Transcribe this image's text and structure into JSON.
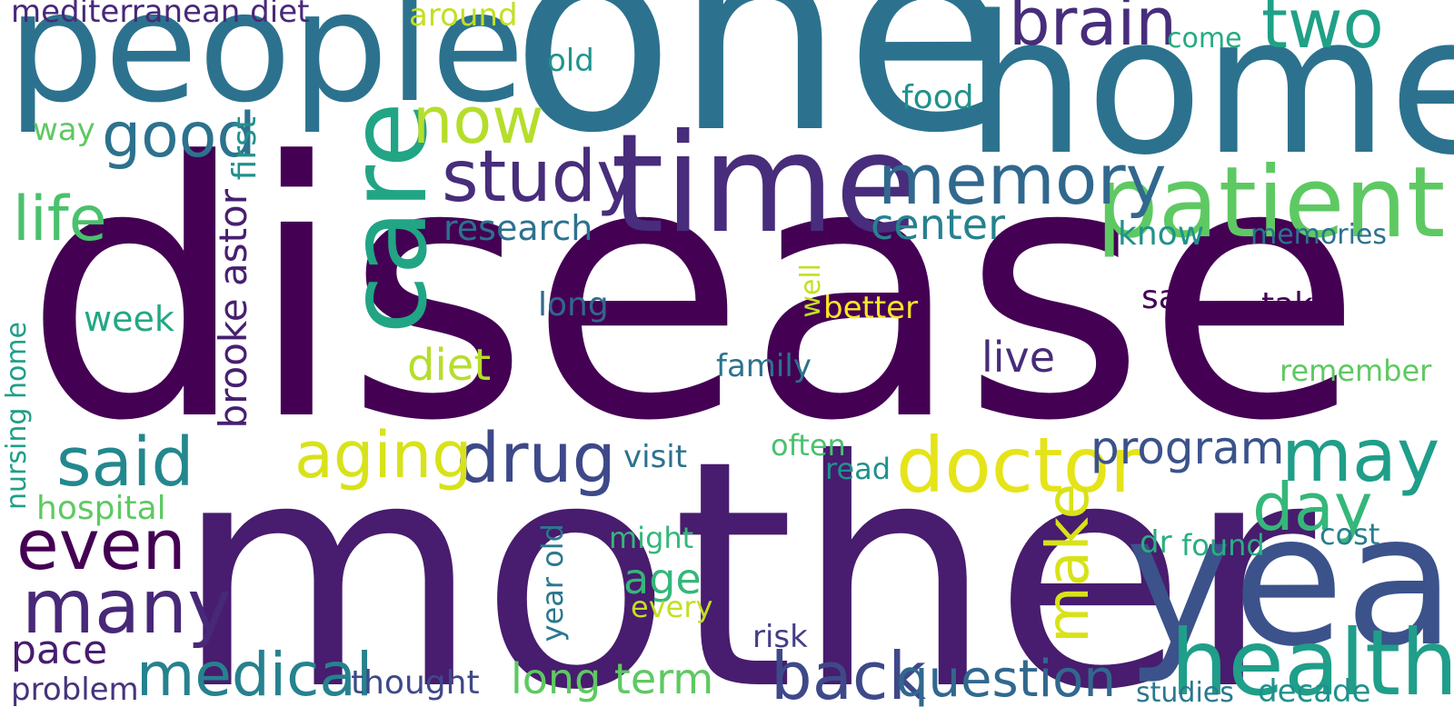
{
  "words": [
    {
      "text": "disease",
      "color": "#440154"
    },
    {
      "text": "mother",
      "color": "#481c6e"
    },
    {
      "text": "one",
      "color": "#2c728e"
    },
    {
      "text": "people",
      "color": "#2c728e"
    },
    {
      "text": "home",
      "color": "#2c728e"
    },
    {
      "text": "year",
      "color": "#3b528b"
    },
    {
      "text": "care",
      "color": "#21a585"
    },
    {
      "text": "time",
      "color": "#472d7b"
    },
    {
      "text": "patient",
      "color": "#5ec962"
    },
    {
      "text": "health",
      "color": "#1f9e89"
    },
    {
      "text": "memory",
      "color": "#31688e"
    },
    {
      "text": "brain",
      "color": "#472d7b"
    },
    {
      "text": "two",
      "color": "#1fa187"
    },
    {
      "text": "good",
      "color": "#2c728e"
    },
    {
      "text": "study",
      "color": "#472d7b"
    },
    {
      "text": "life",
      "color": "#4ac16d"
    },
    {
      "text": "now",
      "color": "#b5de2b"
    },
    {
      "text": "mediterranean diet",
      "color": "#482878"
    },
    {
      "text": "around",
      "color": "#c2df23"
    },
    {
      "text": "doctor",
      "color": "#e5e419"
    },
    {
      "text": "drug",
      "color": "#3e4989"
    },
    {
      "text": "aging",
      "color": "#d8e219"
    },
    {
      "text": "said",
      "color": "#23888e"
    },
    {
      "text": "even",
      "color": "#440154"
    },
    {
      "text": "many",
      "color": "#482878"
    },
    {
      "text": "medical",
      "color": "#26828e"
    },
    {
      "text": "back",
      "color": "#3e4989"
    },
    {
      "text": "question",
      "color": "#31688e"
    },
    {
      "text": "may",
      "color": "#1f9e89"
    },
    {
      "text": "day",
      "color": "#35b779"
    },
    {
      "text": "make",
      "color": "#d8e219"
    },
    {
      "text": "program",
      "color": "#3b528b"
    },
    {
      "text": "diet",
      "color": "#b5de2b"
    },
    {
      "text": "center",
      "color": "#26828e"
    },
    {
      "text": "research",
      "color": "#2c728e"
    },
    {
      "text": "brooke astor",
      "color": "#481f70"
    },
    {
      "text": "first",
      "color": "#21918c"
    },
    {
      "text": "food",
      "color": "#21918c"
    },
    {
      "text": "live",
      "color": "#472c7a"
    },
    {
      "text": "long term",
      "color": "#5ec962"
    },
    {
      "text": "pace",
      "color": "#481c6e"
    },
    {
      "text": "problem",
      "color": "#46337e"
    },
    {
      "text": "thought",
      "color": "#3e4989"
    },
    {
      "text": "age",
      "color": "#35b779"
    },
    {
      "text": "hospital",
      "color": "#5ec962"
    },
    {
      "text": "week",
      "color": "#22a884"
    },
    {
      "text": "nursing home",
      "color": "#1f9e89"
    },
    {
      "text": "decade",
      "color": "#21918c"
    },
    {
      "text": "studies",
      "color": "#2a788e"
    },
    {
      "text": "come",
      "color": "#25ab82"
    },
    {
      "text": "old",
      "color": "#1f948c"
    },
    {
      "text": "way",
      "color": "#5ec962"
    },
    {
      "text": "memories",
      "color": "#2c728e"
    },
    {
      "text": "know",
      "color": "#20928c"
    },
    {
      "text": "take",
      "color": "#440154"
    },
    {
      "text": "say",
      "color": "#440154"
    },
    {
      "text": "remember",
      "color": "#5ec962"
    },
    {
      "text": "cost",
      "color": "#277f8e"
    },
    {
      "text": "found",
      "color": "#29af7f"
    },
    {
      "text": "dr",
      "color": "#29af7f"
    },
    {
      "text": "better",
      "color": "#fde725"
    },
    {
      "text": "family",
      "color": "#2c728e"
    },
    {
      "text": "often",
      "color": "#4ac16d"
    },
    {
      "text": "read",
      "color": "#21918c"
    },
    {
      "text": "visit",
      "color": "#2c728e"
    },
    {
      "text": "might",
      "color": "#35b779"
    },
    {
      "text": "every",
      "color": "#c2df23"
    },
    {
      "text": "risk",
      "color": "#433e85"
    },
    {
      "text": "year old",
      "color": "#2a788e"
    },
    {
      "text": "well",
      "color": "#c2df23"
    },
    {
      "text": "long",
      "color": "#31688e"
    }
  ]
}
